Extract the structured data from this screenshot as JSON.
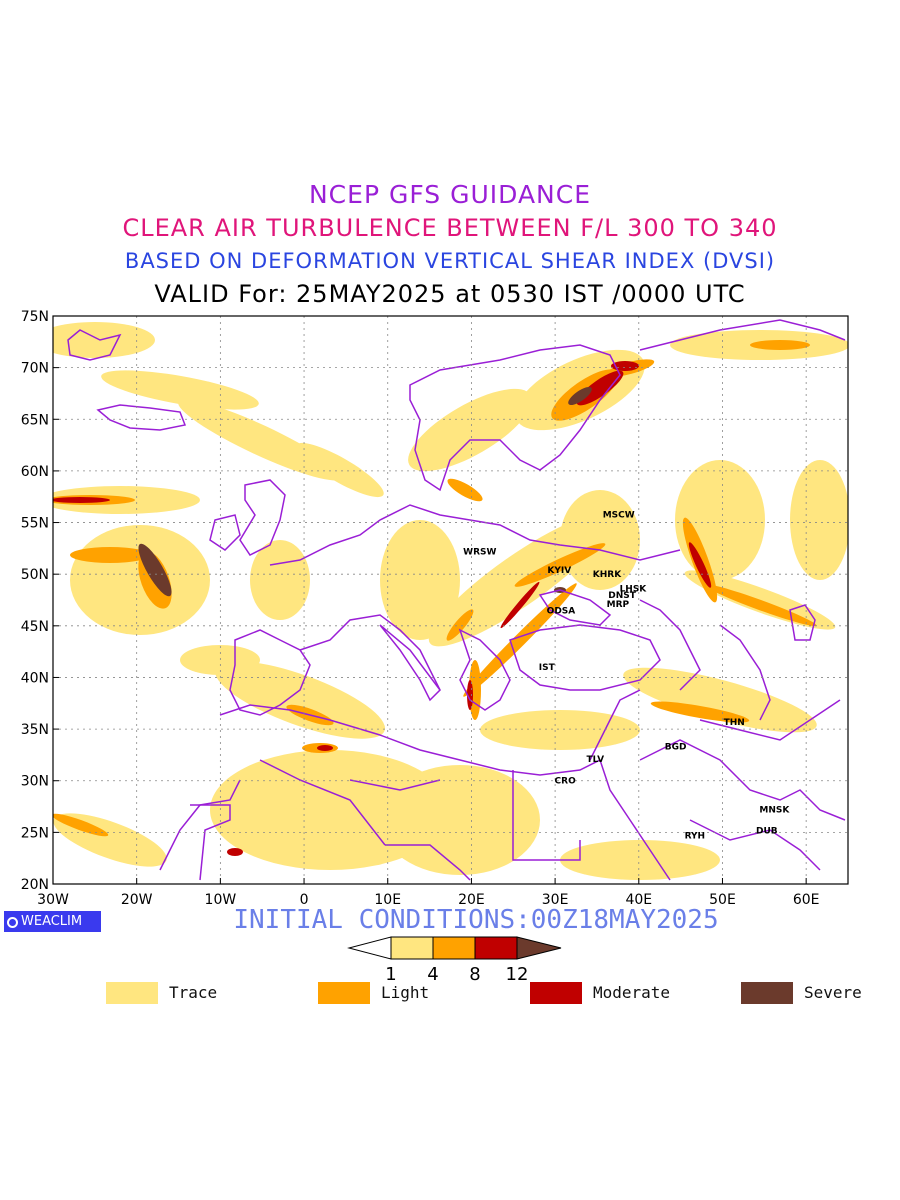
{
  "header": {
    "line1": "NCEP GFS GUIDANCE",
    "line2": "CLEAR AIR TURBULENCE BETWEEN F/L 300 TO 340",
    "line3": "BASED ON DEFORMATION VERTICAL SHEAR INDEX (DVSI)",
    "line4": "VALID For: 25MAY2025 at 0530 IST /0000 UTC"
  },
  "map": {
    "lon_range": [
      -30,
      65
    ],
    "lat_range": [
      20,
      75
    ],
    "lat_ticks": [
      "75N",
      "70N",
      "65N",
      "60N",
      "55N",
      "50N",
      "45N",
      "40N",
      "35N",
      "30N",
      "25N",
      "20N"
    ],
    "lon_ticks": [
      "30W",
      "20W",
      "10W",
      "0",
      "10E",
      "20E",
      "30E",
      "40E",
      "50E",
      "60E"
    ],
    "stations": [
      {
        "code": "MSCW",
        "lon": 37.6,
        "lat": 55.8
      },
      {
        "code": "WRSW",
        "lon": 21.0,
        "lat": 52.2
      },
      {
        "code": "KYIV",
        "lon": 30.5,
        "lat": 50.4
      },
      {
        "code": "KHRK",
        "lon": 36.2,
        "lat": 50.0
      },
      {
        "code": "LHSK",
        "lon": 39.3,
        "lat": 48.6
      },
      {
        "code": "DNST",
        "lon": 38.0,
        "lat": 48.0
      },
      {
        "code": "MRP",
        "lon": 37.5,
        "lat": 47.1
      },
      {
        "code": "ODSA",
        "lon": 30.7,
        "lat": 46.5
      },
      {
        "code": "IST",
        "lon": 29.0,
        "lat": 41.0
      },
      {
        "code": "THN",
        "lon": 51.4,
        "lat": 35.7
      },
      {
        "code": "BGD",
        "lon": 44.4,
        "lat": 33.3
      },
      {
        "code": "TLV",
        "lon": 34.8,
        "lat": 32.1
      },
      {
        "code": "CRO",
        "lon": 31.2,
        "lat": 30.0
      },
      {
        "code": "MNSK",
        "lon": 56.2,
        "lat": 27.2
      },
      {
        "code": "RYH",
        "lon": 46.7,
        "lat": 24.7
      },
      {
        "code": "DUB",
        "lon": 55.3,
        "lat": 25.2
      }
    ]
  },
  "branding": "WEACLIM",
  "initial_conditions": "INITIAL CONDITIONS:00Z18MAY2025",
  "colorbar": {
    "ticks": [
      "1",
      "4",
      "8",
      "12"
    ],
    "colors": [
      "#ffe680",
      "#ffa200",
      "#c00000",
      "#6b3a2c"
    ]
  },
  "legend": [
    {
      "label": "Trace",
      "color": "#ffe680"
    },
    {
      "label": "Light",
      "color": "#ffa200"
    },
    {
      "label": "Moderate",
      "color": "#c00000"
    },
    {
      "label": "Severe",
      "color": "#6b3a2c"
    }
  ]
}
